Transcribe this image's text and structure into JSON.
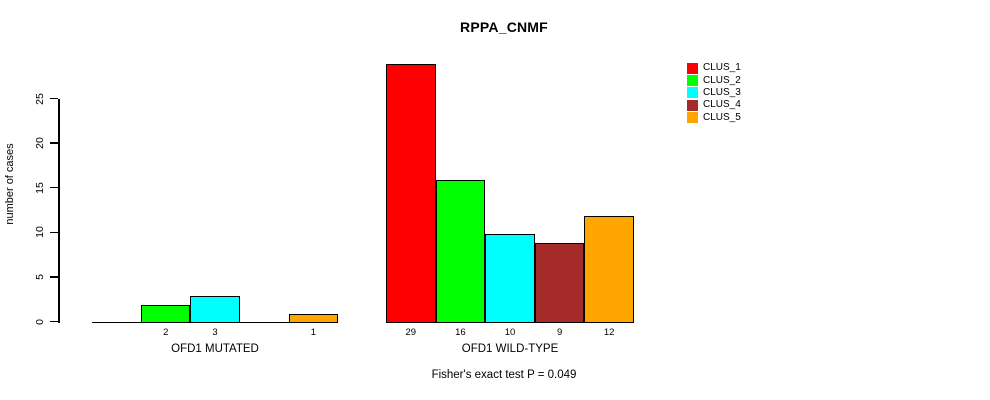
{
  "chart_data": {
    "type": "bar",
    "title": "RPPA_CNMF",
    "ylabel": "number of cases",
    "xlabel": "",
    "ylim": [
      0,
      29
    ],
    "yticks": [
      0,
      5,
      10,
      15,
      20,
      25
    ],
    "grid": false,
    "legend_position": "top-right",
    "background": "#FFFFFF",
    "axis_color": "#000000",
    "categories": [
      "OFD1 MUTATED",
      "OFD1 WILD-TYPE"
    ],
    "series": [
      {
        "name": "CLUS_1",
        "color": "#FF0000",
        "values": [
          0,
          29
        ]
      },
      {
        "name": "CLUS_2",
        "color": "#00FF00",
        "values": [
          2,
          16
        ]
      },
      {
        "name": "CLUS_3",
        "color": "#00FFFF",
        "values": [
          3,
          10
        ]
      },
      {
        "name": "CLUS_4",
        "color": "#A52A2A",
        "values": [
          0,
          9
        ]
      },
      {
        "name": "CLUS_5",
        "color": "#FFA500",
        "values": [
          1,
          12
        ]
      }
    ],
    "bar_value_labels_shown": true,
    "zero_value_bars_hidden": true,
    "annotation": "Fisher's exact test P = 0.049"
  }
}
